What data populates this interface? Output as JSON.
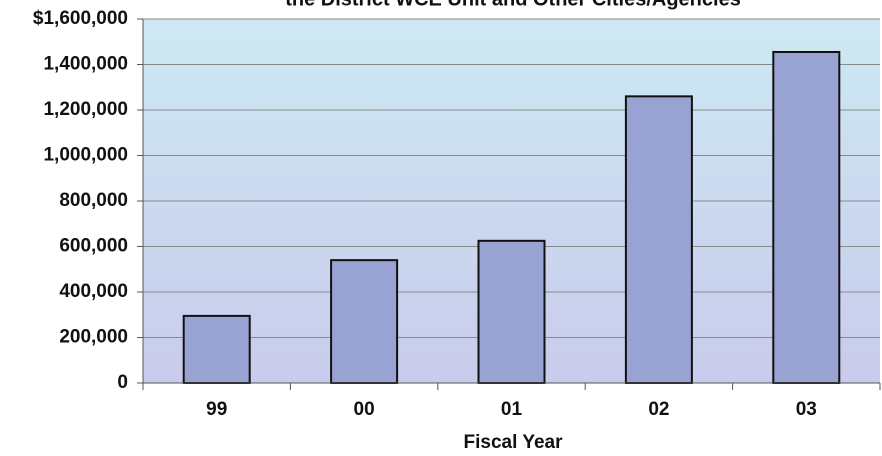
{
  "chart_data": {
    "type": "bar",
    "title": "the District WCE Unit and Other Cities/Agencies",
    "x_label": "Fiscal Year",
    "categories": [
      "99",
      "00",
      "01",
      "02",
      "03"
    ],
    "values": [
      295000,
      540000,
      625000,
      1260000,
      1455000
    ],
    "color": "#99a3d3",
    "ylim": [
      0,
      1600000
    ],
    "yticks": [
      0,
      {
        "value": 200000,
        "label": "200,000"
      },
      {
        "value": 400000,
        "label": "400,000"
      },
      {
        "value": 600000,
        "label": "600,000"
      },
      {
        "value": 800000,
        "label": "800,000"
      },
      {
        "value": 1000000,
        "label": "1,000,000"
      },
      {
        "value": 1200000,
        "label": "1,200,000"
      },
      {
        "value": 1400000,
        "label": "1,400,000"
      },
      {
        "value": 1600000,
        "label": "$1,600,000"
      }
    ],
    "grid": true
  }
}
